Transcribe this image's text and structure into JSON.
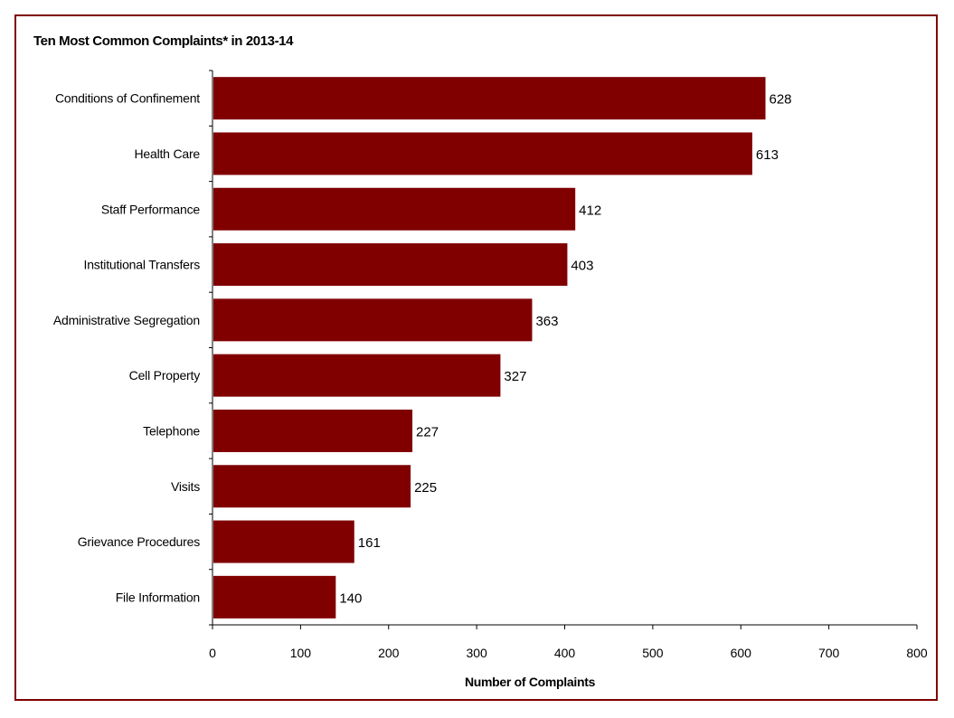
{
  "chart_data": {
    "type": "bar",
    "orientation": "horizontal",
    "title": "Ten Most Common Complaints* in 2013-14",
    "xlabel": "Number of Complaints",
    "ylabel": "",
    "categories": [
      "Conditions of Confinement",
      "Health Care",
      "Staff Performance",
      "Institutional Transfers",
      "Administrative Segregation",
      "Cell Property",
      "Telephone",
      "Visits",
      "Grievance Procedures",
      "File Information"
    ],
    "values": [
      628,
      613,
      412,
      403,
      363,
      327,
      227,
      225,
      161,
      140
    ],
    "xlim": [
      0,
      800
    ],
    "xticks": [
      0,
      100,
      200,
      300,
      400,
      500,
      600,
      700,
      800
    ],
    "grid": false,
    "legend": "none",
    "bar_color": "#800000",
    "border_color": "#800000",
    "data_labels": true
  }
}
